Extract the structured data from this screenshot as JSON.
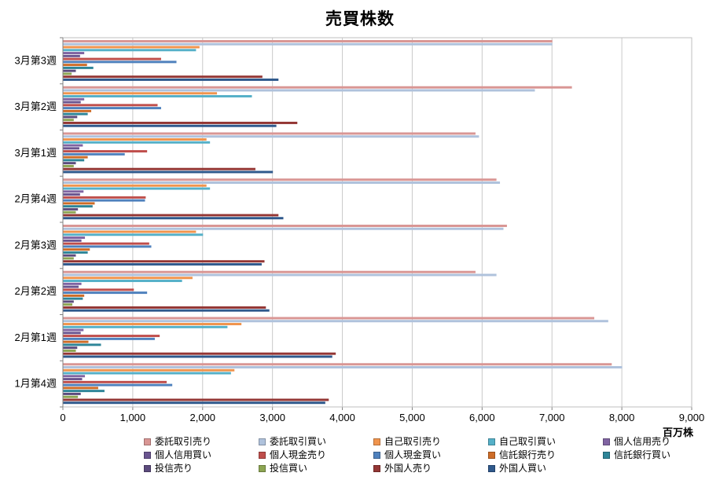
{
  "chart_data": {
    "type": "bar",
    "orientation": "horizontal",
    "title": "売買株数",
    "xlabel": "百万株",
    "ylabel": "",
    "xlim": [
      0,
      9000
    ],
    "x_ticks": [
      "0",
      "1,000",
      "2,000",
      "3,000",
      "4,000",
      "5,000",
      "6,000",
      "7,000",
      "8,000",
      "9,000"
    ],
    "grid": "vertical",
    "legend_position": "bottom",
    "categories": [
      "3月第3週",
      "3月第2週",
      "3月第1週",
      "2月第4週",
      "2月第3週",
      "2月第2週",
      "2月第1週",
      "1月第4週"
    ],
    "series": [
      {
        "name": "委託取引売り",
        "color": "#D99694",
        "values": [
          7000,
          7280,
          5900,
          6200,
          6350,
          5900,
          7600,
          7850
        ]
      },
      {
        "name": "委託取引買い",
        "color": "#AFC2DC",
        "values": [
          7000,
          6750,
          5950,
          6250,
          6300,
          6200,
          7800,
          8000
        ]
      },
      {
        "name": "自己取引売り",
        "color": "#F0944D",
        "values": [
          1950,
          2200,
          2050,
          2050,
          1900,
          1850,
          2550,
          2450
        ]
      },
      {
        "name": "自己取引買い",
        "color": "#55B0C8",
        "values": [
          1900,
          2700,
          2100,
          2100,
          2000,
          1700,
          2350,
          2400
        ]
      },
      {
        "name": "個人信用売り",
        "color": "#8064A2",
        "values": [
          300,
          300,
          280,
          290,
          310,
          260,
          290,
          310
        ]
      },
      {
        "name": "個人信用買い",
        "color": "#6A5590",
        "values": [
          240,
          250,
          230,
          240,
          260,
          220,
          250,
          270
        ]
      },
      {
        "name": "個人現金売り",
        "color": "#BF4E4B",
        "values": [
          1400,
          1350,
          1200,
          1180,
          1230,
          1010,
          1380,
          1480
        ]
      },
      {
        "name": "個人現金買い",
        "color": "#4F81BD",
        "values": [
          1620,
          1400,
          880,
          1170,
          1260,
          1200,
          1310,
          1560
        ]
      },
      {
        "name": "信託銀行売り",
        "color": "#CE6C27",
        "values": [
          340,
          400,
          350,
          450,
          380,
          300,
          360,
          500
        ]
      },
      {
        "name": "信託銀行買い",
        "color": "#2E8598",
        "values": [
          430,
          350,
          300,
          420,
          350,
          280,
          540,
          590
        ]
      },
      {
        "name": "投信売り",
        "color": "#5C4B7D",
        "values": [
          180,
          200,
          180,
          210,
          180,
          150,
          200,
          250
        ]
      },
      {
        "name": "投信買い",
        "color": "#8CA552",
        "values": [
          120,
          150,
          150,
          180,
          150,
          130,
          180,
          210
        ]
      },
      {
        "name": "外国人売り",
        "color": "#943634",
        "values": [
          2850,
          3350,
          2750,
          3080,
          2880,
          2900,
          3900,
          3800
        ]
      },
      {
        "name": "外国人買い",
        "color": "#2F598C",
        "values": [
          3080,
          3050,
          3000,
          3150,
          2840,
          2950,
          3850,
          3750
        ]
      }
    ]
  }
}
